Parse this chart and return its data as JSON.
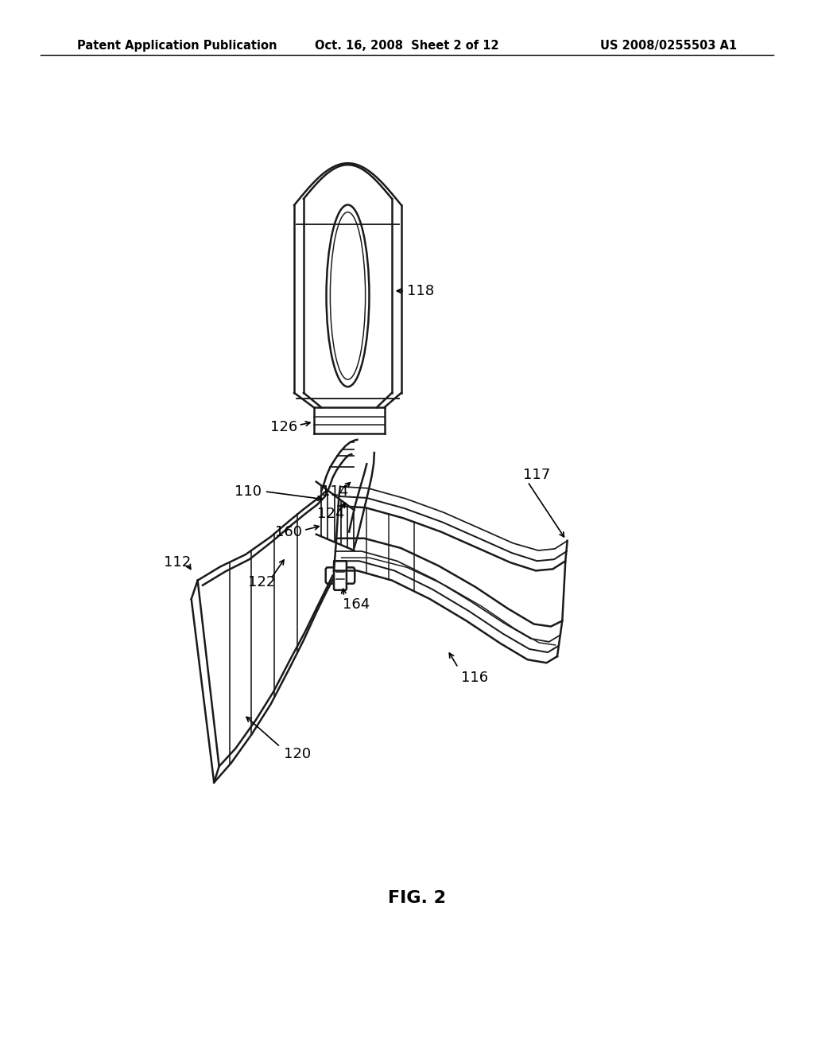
{
  "background_color": "#ffffff",
  "line_color": "#1a1a1a",
  "line_width": 1.8,
  "header_left": "Patent Application Publication",
  "header_center": "Oct. 16, 2008  Sheet 2 of 12",
  "header_right": "US 2008/0255503 A1",
  "figure_label": "FIG. 2"
}
